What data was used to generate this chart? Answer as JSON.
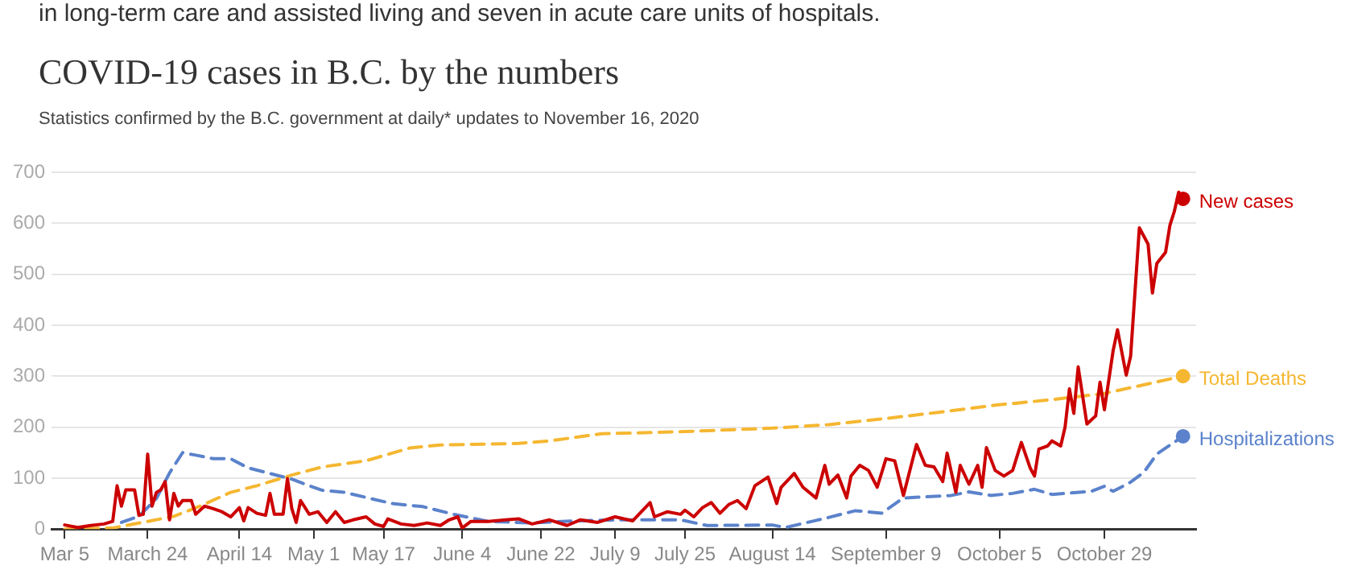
{
  "chart_data": {
    "type": "line",
    "title": "COVID-19 cases in B.C. by the numbers",
    "subtitle": "Statistics confirmed by the B.C. government at daily* updates to November 16, 2020",
    "annotations": [
      "in long-term care and assisted living and seven in acute care units of hospitals."
    ],
    "xlim": [
      "2020-03-02",
      "2020-11-19"
    ],
    "xticks": [
      {
        "value": "2020-03-05",
        "label": "Mar 5"
      },
      {
        "value": "2020-03-24",
        "label": "March 24"
      },
      {
        "value": "2020-04-14",
        "label": "April 14"
      },
      {
        "value": "2020-05-01",
        "label": "May 1"
      },
      {
        "value": "2020-05-17",
        "label": "May 17"
      },
      {
        "value": "2020-06-04",
        "label": "June 4"
      },
      {
        "value": "2020-06-22",
        "label": "June 22"
      },
      {
        "value": "2020-07-09",
        "label": "July 9"
      },
      {
        "value": "2020-07-25",
        "label": "July 25"
      },
      {
        "value": "2020-08-14",
        "label": "August 14"
      },
      {
        "value": "2020-09-09",
        "label": "September 9"
      },
      {
        "value": "2020-10-05",
        "label": "October 5"
      },
      {
        "value": "2020-10-29",
        "label": "October 29"
      }
    ],
    "ylim": [
      0,
      700
    ],
    "yticks": [
      0,
      100,
      200,
      300,
      400,
      500,
      600,
      700
    ],
    "grid": "y",
    "legend": false,
    "series": [
      {
        "name": "New cases",
        "color": "#cc0000",
        "line_style": "solid",
        "x": [
          "2020-03-05",
          "2020-03-08",
          "2020-03-11",
          "2020-03-14",
          "2020-03-16",
          "2020-03-17",
          "2020-03-18",
          "2020-03-19",
          "2020-03-21",
          "2020-03-22",
          "2020-03-23",
          "2020-03-24",
          "2020-03-25",
          "2020-03-26",
          "2020-03-27",
          "2020-03-28",
          "2020-03-29",
          "2020-03-30",
          "2020-03-31",
          "2020-04-01",
          "2020-04-03",
          "2020-04-04",
          "2020-04-06",
          "2020-04-08",
          "2020-04-10",
          "2020-04-12",
          "2020-04-14",
          "2020-04-15",
          "2020-04-16",
          "2020-04-18",
          "2020-04-20",
          "2020-04-21",
          "2020-04-22",
          "2020-04-24",
          "2020-04-25",
          "2020-04-26",
          "2020-04-27",
          "2020-04-28",
          "2020-04-30",
          "2020-05-02",
          "2020-05-04",
          "2020-05-06",
          "2020-05-08",
          "2020-05-10",
          "2020-05-13",
          "2020-05-15",
          "2020-05-17",
          "2020-05-18",
          "2020-05-21",
          "2020-05-24",
          "2020-05-27",
          "2020-05-30",
          "2020-06-01",
          "2020-06-03",
          "2020-06-04",
          "2020-06-06",
          "2020-06-10",
          "2020-06-14",
          "2020-06-17",
          "2020-06-20",
          "2020-06-24",
          "2020-06-28",
          "2020-07-01",
          "2020-07-05",
          "2020-07-09",
          "2020-07-13",
          "2020-07-17",
          "2020-07-18",
          "2020-07-21",
          "2020-07-24",
          "2020-07-25",
          "2020-07-27",
          "2020-07-29",
          "2020-07-31",
          "2020-08-02",
          "2020-08-04",
          "2020-08-06",
          "2020-08-08",
          "2020-08-10",
          "2020-08-13",
          "2020-08-15",
          "2020-08-16",
          "2020-08-19",
          "2020-08-21",
          "2020-08-24",
          "2020-08-26",
          "2020-08-27",
          "2020-08-29",
          "2020-08-31",
          "2020-09-01",
          "2020-09-03",
          "2020-09-05",
          "2020-09-07",
          "2020-09-09",
          "2020-09-11",
          "2020-09-13",
          "2020-09-16",
          "2020-09-18",
          "2020-09-20",
          "2020-09-22",
          "2020-09-23",
          "2020-09-25",
          "2020-09-26",
          "2020-09-28",
          "2020-09-30",
          "2020-10-01",
          "2020-10-02",
          "2020-10-04",
          "2020-10-06",
          "2020-10-08",
          "2020-10-10",
          "2020-10-12",
          "2020-10-13",
          "2020-10-14",
          "2020-10-16",
          "2020-10-17",
          "2020-10-19",
          "2020-10-20",
          "2020-10-21",
          "2020-10-22",
          "2020-10-23",
          "2020-10-25",
          "2020-10-27",
          "2020-10-28",
          "2020-10-29",
          "2020-10-31",
          "2020-11-01",
          "2020-11-03",
          "2020-11-04",
          "2020-11-06",
          "2020-11-08",
          "2020-11-09",
          "2020-11-10",
          "2020-11-12",
          "2020-11-13",
          "2020-11-14",
          "2020-11-15",
          "2020-11-16"
        ],
        "values": [
          8,
          3,
          7,
          10,
          15,
          85,
          45,
          77,
          77,
          27,
          29,
          147,
          45,
          72,
          77,
          93,
          18,
          70,
          45,
          56,
          56,
          29,
          45,
          40,
          34,
          24,
          42,
          16,
          42,
          31,
          27,
          70,
          29,
          29,
          99,
          40,
          13,
          56,
          29,
          34,
          13,
          34,
          13,
          18,
          24,
          10,
          5,
          20,
          10,
          7,
          12,
          7,
          18,
          24,
          2,
          15,
          15,
          18,
          20,
          10,
          18,
          7,
          18,
          13,
          24,
          16,
          52,
          24,
          34,
          29,
          37,
          24,
          42,
          52,
          31,
          48,
          56,
          40,
          85,
          102,
          50,
          82,
          109,
          82,
          61,
          125,
          88,
          106,
          61,
          104,
          125,
          115,
          82,
          138,
          134,
          66,
          166,
          125,
          122,
          93,
          149,
          72,
          125,
          88,
          125,
          82,
          160,
          115,
          104,
          115,
          170,
          120,
          104,
          157,
          163,
          173,
          163,
          200,
          275,
          227,
          318,
          206,
          222,
          288,
          234,
          350,
          391,
          302,
          339,
          591,
          559,
          463,
          521,
          543,
          596,
          623,
          661,
          648
        ]
      },
      {
        "name": "Total Deaths",
        "color": "#f5b731",
        "line_style": "dashed",
        "x": [
          "2020-03-05",
          "2020-03-16",
          "2020-03-24",
          "2020-03-30",
          "2020-04-05",
          "2020-04-12",
          "2020-04-18",
          "2020-04-26",
          "2020-05-03",
          "2020-05-13",
          "2020-05-23",
          "2020-05-30",
          "2020-06-17",
          "2020-06-24",
          "2020-07-06",
          "2020-07-24",
          "2020-08-14",
          "2020-08-27",
          "2020-09-08",
          "2020-09-21",
          "2020-10-04",
          "2020-10-16",
          "2020-10-29",
          "2020-11-16"
        ],
        "values": [
          0,
          2,
          15,
          25,
          45,
          72,
          85,
          106,
          122,
          134,
          159,
          165,
          168,
          173,
          187,
          191,
          198,
          205,
          216,
          229,
          243,
          253,
          266,
          300
        ]
      },
      {
        "name": "Hospitalizations",
        "color": "#5b82cb",
        "line_style": "dashed",
        "x": [
          "2020-03-18",
          "2020-03-22",
          "2020-03-26",
          "2020-03-29",
          "2020-04-01",
          "2020-04-04",
          "2020-04-08",
          "2020-04-12",
          "2020-04-16",
          "2020-04-21",
          "2020-04-26",
          "2020-04-30",
          "2020-05-03",
          "2020-05-08",
          "2020-05-14",
          "2020-05-19",
          "2020-05-26",
          "2020-06-02",
          "2020-06-10",
          "2020-06-20",
          "2020-06-30",
          "2020-07-10",
          "2020-07-20",
          "2020-07-24",
          "2020-07-30",
          "2020-08-14",
          "2020-08-17",
          "2020-08-27",
          "2020-09-02",
          "2020-09-08",
          "2020-09-13",
          "2020-09-24",
          "2020-09-28",
          "2020-10-03",
          "2020-10-08",
          "2020-10-13",
          "2020-10-17",
          "2020-10-26",
          "2020-10-29",
          "2020-10-31",
          "2020-11-04",
          "2020-11-07",
          "2020-11-10",
          "2020-11-16"
        ],
        "values": [
          13,
          25,
          60,
          110,
          150,
          145,
          138,
          138,
          120,
          109,
          98,
          85,
          76,
          72,
          60,
          50,
          44,
          29,
          15,
          12,
          16,
          18,
          18,
          18,
          7,
          8,
          3,
          23,
          36,
          31,
          61,
          66,
          73,
          66,
          70,
          78,
          68,
          74,
          84,
          74,
          92,
          111,
          147,
          182
        ]
      }
    ]
  }
}
